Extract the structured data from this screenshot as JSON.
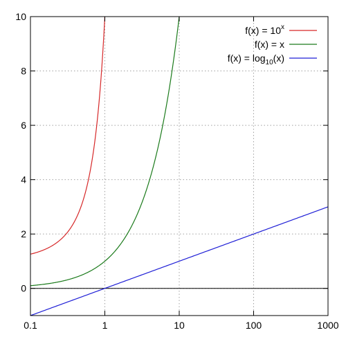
{
  "chart_data": {
    "type": "line",
    "title": "",
    "xlabel": "",
    "ylabel": "",
    "x_scale": "log",
    "xlim": [
      0.1,
      1000
    ],
    "ylim": [
      -1,
      10
    ],
    "grid": true,
    "legend_position": "top-right",
    "x_ticks": [
      {
        "value": 0.1,
        "label": "0.1"
      },
      {
        "value": 1,
        "label": "1"
      },
      {
        "value": 10,
        "label": "10"
      },
      {
        "value": 100,
        "label": "100"
      },
      {
        "value": 1000,
        "label": "1000"
      }
    ],
    "y_ticks": [
      {
        "value": 0,
        "label": "0"
      },
      {
        "value": 2,
        "label": "2"
      },
      {
        "value": 4,
        "label": "4"
      },
      {
        "value": 6,
        "label": "6"
      },
      {
        "value": 8,
        "label": "8"
      },
      {
        "value": 10,
        "label": "10"
      }
    ],
    "series": [
      {
        "name": "10^x",
        "legend": {
          "prefix": "f(x) = 10",
          "sup": "x",
          "sub": "",
          "suffix": ""
        },
        "color": "#d62728",
        "function": "pow10",
        "x": [
          0.1,
          0.2,
          0.3,
          0.4,
          0.5,
          0.6,
          0.7,
          0.8,
          0.9,
          1.0
        ],
        "y": [
          1.26,
          1.58,
          2.0,
          2.51,
          3.16,
          3.98,
          5.01,
          6.31,
          7.94,
          10.0
        ]
      },
      {
        "name": "x",
        "legend": {
          "prefix": "f(x) = x",
          "sup": "",
          "sub": "",
          "suffix": ""
        },
        "color": "#1a7a1a",
        "function": "identity",
        "x": [
          0.1,
          0.5,
          1,
          2,
          4,
          6,
          8,
          10
        ],
        "y": [
          0.1,
          0.5,
          1,
          2,
          4,
          6,
          8,
          10
        ]
      },
      {
        "name": "log10(x)",
        "legend": {
          "prefix": "f(x) = log",
          "sup": "",
          "sub": "10",
          "suffix": "(x)"
        },
        "color": "#1f1fd6",
        "function": "log10",
        "x": [
          0.1,
          1,
          10,
          100,
          1000
        ],
        "y": [
          -1,
          0,
          1,
          2,
          3
        ]
      }
    ]
  }
}
